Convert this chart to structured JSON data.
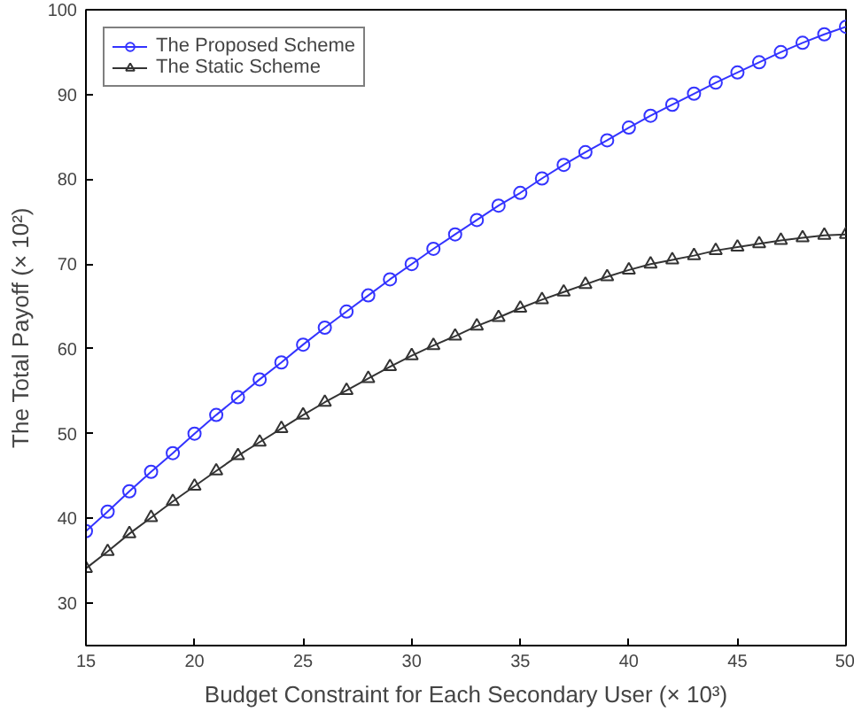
{
  "chart_data": {
    "type": "line",
    "xlabel": "Budget Constraint for Each Secondary User (× 10³)",
    "ylabel": "The Total Payoff (× 10²)",
    "x": [
      15,
      16,
      17,
      18,
      19,
      20,
      21,
      22,
      23,
      24,
      25,
      26,
      27,
      28,
      29,
      30,
      31,
      32,
      33,
      34,
      35,
      36,
      37,
      38,
      39,
      40,
      41,
      42,
      43,
      44,
      45,
      46,
      47,
      48,
      49,
      50
    ],
    "series": [
      {
        "name": "The Proposed Scheme",
        "color": "#3333ff",
        "marker": "circle",
        "values": [
          38.5,
          40.8,
          43.2,
          45.5,
          47.7,
          50,
          52.2,
          54.3,
          56.4,
          58.4,
          60.5,
          62.5,
          64.4,
          66.3,
          68.2,
          70,
          71.8,
          73.5,
          75.2,
          76.9,
          78.4,
          80.1,
          81.7,
          83.2,
          84.6,
          86.1,
          87.5,
          88.8,
          90.1,
          91.4,
          92.6,
          93.8,
          95.0,
          96.1,
          97.1,
          98.0
        ]
      },
      {
        "name": "The Static Scheme",
        "color": "#333333",
        "marker": "triangle",
        "values": [
          34.1,
          36.1,
          38.2,
          40.1,
          42,
          43.8,
          45.6,
          47.4,
          49,
          50.6,
          52.2,
          53.7,
          55.1,
          56.5,
          57.9,
          59.2,
          60.4,
          61.5,
          62.7,
          63.7,
          64.8,
          65.8,
          66.7,
          67.6,
          68.5,
          69.3,
          70,
          70.5,
          71,
          71.6,
          72,
          72.4,
          72.8,
          73.1,
          73.4,
          73.5
        ]
      }
    ],
    "xlim": [
      15,
      50
    ],
    "ylim": [
      25,
      100
    ],
    "xticks": [
      15,
      20,
      25,
      30,
      35,
      40,
      45,
      50
    ],
    "yticks": [
      30,
      40,
      50,
      60,
      70,
      80,
      90,
      100
    ],
    "grid": false,
    "legend": "top left",
    "line_style": "solid"
  }
}
